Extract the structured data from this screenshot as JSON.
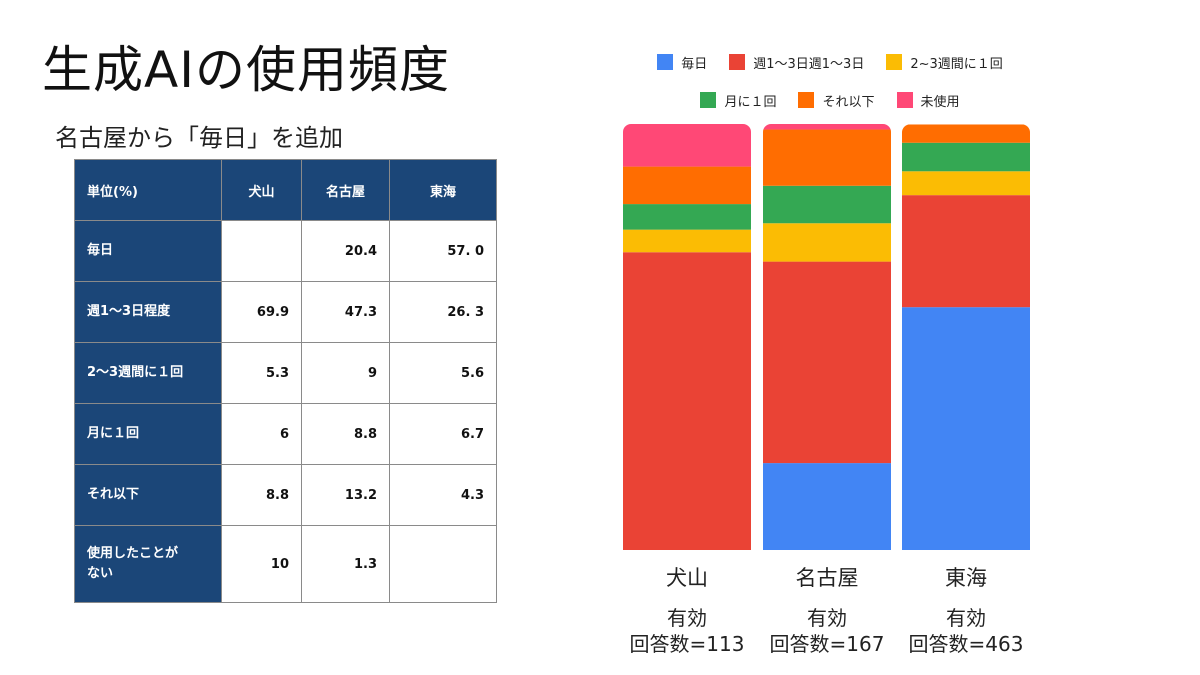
{
  "title": "生成AIの使用頻度",
  "subtitle": "名古屋から「毎日」を追加",
  "table": {
    "corner": "単位(%)",
    "columns": [
      "犬山",
      "名古屋",
      "東海"
    ],
    "rows": [
      {
        "label": "毎日",
        "values": [
          "",
          "20.4",
          "57. 0"
        ]
      },
      {
        "label": "週1～3日程度",
        "values": [
          "69.9",
          "47.3",
          "26. 3"
        ]
      },
      {
        "label": "2～3週間に１回",
        "values": [
          "5.3",
          "9",
          "5.6"
        ]
      },
      {
        "label": "月に１回",
        "values": [
          "6",
          "8.8",
          "6.7"
        ]
      },
      {
        "label": "それ以下",
        "values": [
          "8.8",
          "13.2",
          "4.3"
        ]
      },
      {
        "label": "使用したことが\nない",
        "values": [
          "10",
          "1.3",
          ""
        ]
      }
    ]
  },
  "chart_data": {
    "type": "bar",
    "stacked": true,
    "categories": [
      "犬山",
      "名古屋",
      "東海"
    ],
    "category_notes": [
      "有効\n回答数=113",
      "有効\n回答数=167",
      "有効\n回答数=463"
    ],
    "ylim": [
      0,
      100
    ],
    "grid": false,
    "legend_position": "top",
    "series": [
      {
        "name": "毎日",
        "color": "#4285f4",
        "values": [
          0,
          20.4,
          57.0
        ]
      },
      {
        "name": "週1〜3日週1〜3日",
        "color": "#ea4335",
        "values": [
          69.9,
          47.3,
          26.3
        ]
      },
      {
        "name": "2~3週間に１回",
        "color": "#fbbc04",
        "values": [
          5.3,
          9,
          5.6
        ]
      },
      {
        "name": "月に１回",
        "color": "#34a853",
        "values": [
          6,
          8.8,
          6.7
        ]
      },
      {
        "name": "それ以下",
        "color": "#ff6d01",
        "values": [
          8.8,
          13.2,
          4.3
        ]
      },
      {
        "name": "未使用",
        "color": "#ff4876",
        "values": [
          10,
          1.3,
          0
        ]
      }
    ]
  }
}
